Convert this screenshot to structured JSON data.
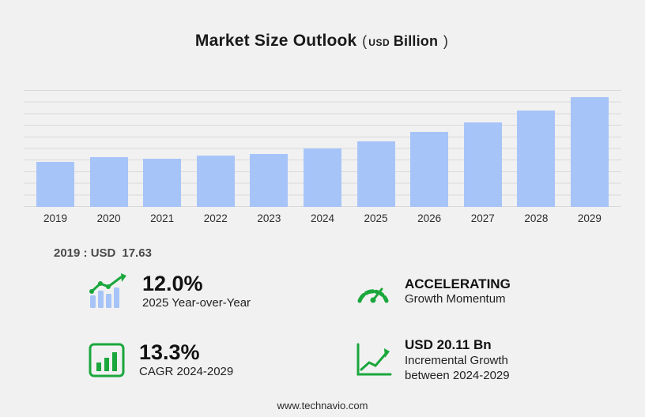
{
  "title": {
    "main": "Market Size Outlook",
    "paren_open": "(",
    "currency": "USD",
    "unit": "Billion",
    "paren_close": ")"
  },
  "chart_data": {
    "type": "bar",
    "categories": [
      "2019",
      "2020",
      "2021",
      "2022",
      "2023",
      "2024",
      "2025",
      "2026",
      "2027",
      "2028",
      "2029"
    ],
    "values": [
      17.63,
      19.5,
      18.9,
      20.1,
      20.7,
      23.17,
      25.95,
      29.4,
      33.3,
      37.9,
      43.28
    ],
    "title": "Market Size Outlook (USD Billion)",
    "xlabel": "",
    "ylabel": "",
    "ylim": [
      0,
      46
    ],
    "grid": true,
    "legend": "none",
    "bar_color": "#a7c4f8"
  },
  "base_year_note": {
    "label": "2019 : USD",
    "value": "17.63"
  },
  "stats": [
    {
      "icon": "bar-trend-icon",
      "value": "12.0%",
      "label": "2025 Year-over-Year"
    },
    {
      "icon": "speedometer-icon",
      "value": "ACCELERATING",
      "label": "Growth Momentum"
    },
    {
      "icon": "framed-bars-icon",
      "value": "13.3%",
      "label": "CAGR 2024-2029"
    },
    {
      "icon": "growth-line-icon",
      "value": "USD 20.11 Bn",
      "label": "Incremental Growth between 2024-2029"
    }
  ],
  "colors": {
    "accent_green": "#1aa73c",
    "bar_blue": "#a7c4f8",
    "gridline": "#d9d9da",
    "background": "#f1f1f2"
  },
  "footer": {
    "url_text": "www.technavio.com"
  }
}
